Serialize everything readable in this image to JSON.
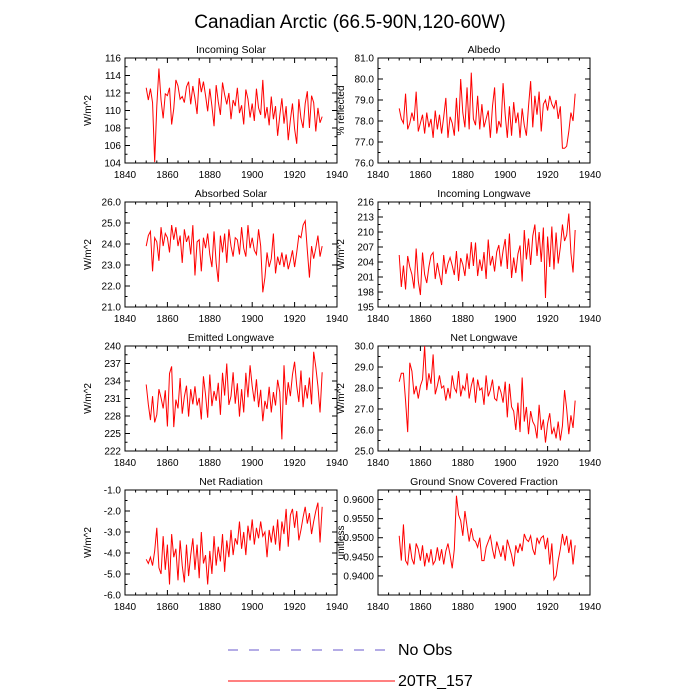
{
  "figure": {
    "title": "Canadian Arctic (66.5-90N,120-60W)"
  },
  "colors": {
    "series": "#ff0000",
    "obs": "#6a5acd",
    "axis": "#000000"
  },
  "legend": [
    {
      "label": "No Obs",
      "style": "dashed",
      "color": "#6a5acd"
    },
    {
      "label": "20TR_157",
      "style": "solid",
      "color": "#ff0000"
    }
  ],
  "chart_data": [
    {
      "type": "line",
      "title": "Incoming Solar",
      "ylabel": "W/m^2",
      "xlabel": "",
      "xlim": [
        1840,
        1940
      ],
      "ylim": [
        104,
        116
      ],
      "xticks": [
        "1840",
        "1860",
        "1880",
        "1900",
        "1920",
        "1940"
      ],
      "yticks": [
        "104",
        "106",
        "108",
        "110",
        "112",
        "114",
        "116"
      ],
      "series": [
        {
          "name": "20TR_157",
          "x_start": 1850,
          "values": [
            112.6,
            111.2,
            112.5,
            110.9,
            104.1,
            110.5,
            114.8,
            111.2,
            109.1,
            111.9,
            111.7,
            112.6,
            108.4,
            110.2,
            113.5,
            112.8,
            111.3,
            111.6,
            110.9,
            112.7,
            113.3,
            110.7,
            112.8,
            111.4,
            109.6,
            113.7,
            112.1,
            113.3,
            111.7,
            109.9,
            112.5,
            110.5,
            108.2,
            112.9,
            111.0,
            109.5,
            113.2,
            111.8,
            110.7,
            112.0,
            109.0,
            111.2,
            110.5,
            112.6,
            109.7,
            110.6,
            108.4,
            112.4,
            111.3,
            109.2,
            110.8,
            108.8,
            112.5,
            110.3,
            109.5,
            113.5,
            109.1,
            110.4,
            108.3,
            111.6,
            109.0,
            110.5,
            107.1,
            109.4,
            111.4,
            108.5,
            110.5,
            106.6,
            108.9,
            110.8,
            107.9,
            106.2,
            111.3,
            109.1,
            108.0,
            110.8,
            112.2,
            108.0,
            111.7,
            110.9,
            107.6,
            110.3,
            108.6,
            109.3
          ]
        }
      ]
    },
    {
      "type": "line",
      "title": "Albedo",
      "ylabel": "% reflected",
      "xlabel": "",
      "xlim": [
        1840,
        1940
      ],
      "ylim": [
        76.0,
        81.0
      ],
      "xticks": [
        "1840",
        "1860",
        "1880",
        "1900",
        "1920",
        "1940"
      ],
      "yticks": [
        "76.0",
        "77.0",
        "78.0",
        "79.0",
        "80.0",
        "81.0"
      ],
      "series": [
        {
          "name": "20TR_157",
          "x_start": 1850,
          "values": [
            78.6,
            78.1,
            77.9,
            79.3,
            77.6,
            77.9,
            78.4,
            78.0,
            79.4,
            77.5,
            77.9,
            78.3,
            77.4,
            78.4,
            77.7,
            78.1,
            77.2,
            78.5,
            77.6,
            78.3,
            77.4,
            78.2,
            79.1,
            77.2,
            78.2,
            77.9,
            77.3,
            79.1,
            77.5,
            80.0,
            78.4,
            77.7,
            79.6,
            77.6,
            80.3,
            78.1,
            77.8,
            79.2,
            77.6,
            78.8,
            77.7,
            78.1,
            78.5,
            77.2,
            78.7,
            79.6,
            77.4,
            78.0,
            77.7,
            79.8,
            78.3,
            77.2,
            78.7,
            77.3,
            78.9,
            77.9,
            78.4,
            77.2,
            78.6,
            77.8,
            77.3,
            78.7,
            79.9,
            77.7,
            79.2,
            78.3,
            79.4,
            77.5,
            78.8,
            79.0,
            78.5,
            79.2,
            78.8,
            78.6,
            79.0,
            78.1,
            78.7,
            76.7,
            76.7,
            76.8,
            77.5,
            78.4,
            78.0,
            79.3
          ]
        }
      ]
    },
    {
      "type": "line",
      "title": "Absorbed Solar",
      "ylabel": "W/m^2",
      "xlabel": "",
      "xlim": [
        1840,
        1940
      ],
      "ylim": [
        21.0,
        26.0
      ],
      "xticks": [
        "1840",
        "1860",
        "1880",
        "1900",
        "1920",
        "1940"
      ],
      "yticks": [
        "21.0",
        "22.0",
        "23.0",
        "24.0",
        "25.0",
        "26.0"
      ],
      "series": [
        {
          "name": "20TR_157",
          "x_start": 1850,
          "values": [
            23.9,
            24.4,
            24.6,
            22.7,
            24.3,
            24.1,
            23.2,
            24.8,
            23.9,
            24.5,
            24.3,
            23.6,
            24.9,
            24.2,
            24.8,
            23.9,
            24.4,
            23.1,
            24.7,
            24.1,
            24.4,
            23.5,
            24.9,
            22.5,
            24.1,
            24.2,
            22.7,
            24.3,
            23.8,
            24.5,
            23.5,
            22.9,
            24.6,
            23.1,
            22.2,
            24.4,
            23.6,
            24.5,
            23.1,
            24.7,
            23.9,
            23.4,
            24.3,
            24.2,
            23.5,
            24.8,
            23.8,
            23.4,
            24.9,
            23.8,
            24.3,
            23.7,
            23.5,
            24.7,
            23.9,
            21.7,
            22.4,
            23.6,
            22.9,
            23.3,
            24.5,
            22.6,
            23.4,
            23.0,
            23.6,
            22.9,
            23.5,
            22.8,
            23.2,
            23.7,
            22.9,
            23.6,
            24.4,
            24.3,
            24.9,
            25.1,
            23.7,
            22.4,
            23.9,
            23.3,
            23.8,
            24.4,
            23.4,
            23.9
          ]
        }
      ]
    },
    {
      "type": "line",
      "title": "Incoming Longwave",
      "ylabel": "W/m^2",
      "xlabel": "",
      "xlim": [
        1840,
        1940
      ],
      "ylim": [
        195,
        216
      ],
      "xticks": [
        "1840",
        "1860",
        "1880",
        "1900",
        "1920",
        "1940"
      ],
      "yticks": [
        "195",
        "198",
        "201",
        "204",
        "207",
        "210",
        "213",
        "216"
      ],
      "series": [
        {
          "name": "20TR_157",
          "x_start": 1850,
          "values": [
            205.4,
            199.0,
            203.3,
            198.5,
            205.2,
            203.0,
            201.5,
            198.7,
            206.7,
            200.2,
            197.4,
            205.9,
            201.5,
            199.8,
            203.0,
            205.3,
            205.9,
            200.6,
            203.8,
            201.5,
            199.4,
            205.4,
            201.6,
            203.7,
            204.9,
            203.3,
            201.4,
            206.2,
            200.2,
            204.8,
            203.5,
            201.2,
            205.7,
            202.6,
            208.0,
            203.2,
            207.9,
            201.2,
            204.5,
            202.2,
            206.0,
            200.6,
            208.5,
            203.3,
            205.2,
            202.1,
            206.0,
            207.4,
            203.1,
            206.3,
            208.6,
            202.6,
            209.7,
            200.8,
            204.9,
            201.8,
            205.6,
            207.3,
            200.1,
            210.4,
            204.5,
            208.7,
            203.4,
            209.2,
            211.5,
            205.2,
            210.0,
            204.0,
            210.9,
            196.8,
            209.1,
            203.0,
            211.1,
            202.5,
            209.9,
            203.7,
            206.9,
            211.5,
            208.2,
            209.4,
            213.7,
            205.8,
            201.9,
            210.4
          ]
        }
      ]
    },
    {
      "type": "line",
      "title": "Emitted Longwave",
      "ylabel": "W/m^2",
      "xlabel": "",
      "xlim": [
        1840,
        1940
      ],
      "ylim": [
        222,
        240
      ],
      "xticks": [
        "1840",
        "1860",
        "1880",
        "1900",
        "1920",
        "1940"
      ],
      "yticks": [
        "222",
        "225",
        "228",
        "231",
        "234",
        "237",
        "240"
      ],
      "series": [
        {
          "name": "20TR_157",
          "x_start": 1850,
          "values": [
            233.4,
            230.0,
            227.3,
            231.4,
            226.9,
            228.2,
            232.6,
            231.1,
            229.3,
            232.4,
            226.2,
            235.3,
            236.5,
            226.1,
            230.8,
            229.3,
            234.5,
            228.4,
            231.3,
            233.2,
            227.9,
            232.6,
            230.0,
            233.1,
            229.8,
            231.1,
            227.4,
            234.8,
            231.6,
            227.7,
            235.1,
            229.7,
            232.3,
            230.6,
            233.7,
            228.2,
            235.4,
            231.5,
            237.0,
            229.9,
            231.4,
            235.5,
            230.1,
            233.6,
            227.9,
            232.6,
            228.6,
            235.4,
            231.2,
            236.7,
            233.1,
            230.5,
            234.3,
            229.5,
            232.5,
            227.1,
            230.6,
            229.2,
            233.0,
            228.6,
            232.1,
            229.8,
            234.2,
            232.1,
            224.0,
            236.7,
            229.9,
            233.8,
            231.4,
            235.1,
            237.3,
            233.2,
            230.4,
            235.8,
            229.5,
            233.3,
            231.0,
            234.6,
            230.0,
            239.0,
            236.4,
            233.1,
            228.6,
            235.5
          ]
        }
      ]
    },
    {
      "type": "line",
      "title": "Net Longwave",
      "ylabel": "W/m^2",
      "xlabel": "",
      "xlim": [
        1840,
        1940
      ],
      "ylim": [
        25.0,
        30.0
      ],
      "xticks": [
        "1840",
        "1860",
        "1880",
        "1900",
        "1920",
        "1940"
      ],
      "yticks": [
        "25.0",
        "26.0",
        "27.0",
        "28.0",
        "29.0",
        "30.0"
      ],
      "series": [
        {
          "name": "20TR_157",
          "x_start": 1850,
          "values": [
            28.3,
            28.7,
            28.7,
            27.4,
            25.9,
            29.2,
            28.8,
            27.7,
            28.1,
            27.5,
            28.1,
            28.4,
            30.0,
            27.9,
            28.7,
            28.2,
            29.6,
            27.7,
            28.1,
            28.6,
            28.0,
            28.1,
            27.4,
            28.0,
            27.5,
            28.6,
            28.0,
            27.8,
            28.8,
            27.6,
            28.1,
            27.9,
            28.7,
            27.5,
            28.1,
            28.5,
            27.3,
            28.4,
            27.9,
            28.0,
            27.2,
            28.6,
            27.6,
            27.9,
            28.4,
            27.5,
            27.4,
            28.1,
            27.8,
            27.3,
            28.3,
            26.6,
            28.2,
            27.1,
            26.9,
            26.0,
            27.3,
            25.9,
            28.5,
            26.4,
            27.1,
            25.8,
            26.9,
            26.4,
            26.2,
            25.6,
            27.2,
            26.0,
            26.5,
            25.4,
            26.3,
            26.8,
            25.8,
            26.1,
            25.6,
            26.4,
            25.5,
            26.2,
            27.9,
            27.0,
            25.8,
            26.7,
            26.1,
            27.4
          ]
        }
      ]
    },
    {
      "type": "line",
      "title": "Net Radiation",
      "ylabel": "W/m^2",
      "xlabel": "",
      "xlim": [
        1840,
        1940
      ],
      "ylim": [
        -6.0,
        -1.0
      ],
      "xticks": [
        "1840",
        "1860",
        "1880",
        "1900",
        "1920",
        "1940"
      ],
      "yticks": [
        "-1.0",
        "-2.0",
        "-3.0",
        "-4.0",
        "-5.0",
        "-6.0"
      ],
      "series": [
        {
          "name": "20TR_157",
          "x_start": 1850,
          "values": [
            -4.3,
            -4.5,
            -4.2,
            -4.6,
            -3.9,
            -2.8,
            -4.7,
            -5.0,
            -3.2,
            -4.8,
            -3.6,
            -5.5,
            -3.1,
            -4.2,
            -3.8,
            -5.3,
            -3.4,
            -4.6,
            -5.4,
            -3.6,
            -5.1,
            -4.1,
            -3.3,
            -4.8,
            -3.6,
            -5.2,
            -3.0,
            -4.5,
            -4.1,
            -5.5,
            -3.9,
            -5.0,
            -3.2,
            -4.6,
            -3.7,
            -4.4,
            -3.1,
            -4.9,
            -3.4,
            -4.2,
            -2.9,
            -4.1,
            -3.3,
            -3.6,
            -2.5,
            -3.8,
            -3.0,
            -4.1,
            -2.7,
            -3.4,
            -2.4,
            -3.6,
            -2.8,
            -3.3,
            -2.5,
            -3.2,
            -3.0,
            -4.2,
            -2.9,
            -3.5,
            -2.7,
            -3.6,
            -2.4,
            -3.9,
            -2.5,
            -3.1,
            -1.9,
            -3.7,
            -2.2,
            -1.9,
            -2.8,
            -2.0,
            -3.4,
            -2.9,
            -2.3,
            -1.8,
            -2.6,
            -2.1,
            -3.1,
            -2.5,
            -2.0,
            -1.6,
            -3.5,
            -1.8
          ]
        }
      ]
    },
    {
      "type": "line",
      "title": "Ground Snow Covered Fraction",
      "ylabel": "unitless",
      "xlabel": "",
      "xlim": [
        1840,
        1940
      ],
      "ylim": [
        0.935,
        0.9625
      ],
      "xticks": [
        "1840",
        "1860",
        "1880",
        "1900",
        "1920",
        "1940"
      ],
      "yticks": [
        "0.9400",
        "0.9450",
        "0.9500",
        "0.9550",
        "0.9600"
      ],
      "series": [
        {
          "name": "20TR_157",
          "x_start": 1850,
          "values": [
            0.9505,
            0.944,
            0.9535,
            0.944,
            0.943,
            0.9485,
            0.9445,
            0.943,
            0.9485,
            0.947,
            0.944,
            0.948,
            0.9425,
            0.946,
            0.9435,
            0.947,
            0.943,
            0.944,
            0.9475,
            0.944,
            0.947,
            0.943,
            0.9465,
            0.9485,
            0.9455,
            0.942,
            0.947,
            0.961,
            0.956,
            0.9545,
            0.9505,
            0.957,
            0.953,
            0.949,
            0.9525,
            0.9495,
            0.949,
            0.9475,
            0.95,
            0.944,
            0.944,
            0.9475,
            0.949,
            0.9505,
            0.947,
            0.9445,
            0.949,
            0.947,
            0.945,
            0.948,
            0.944,
            0.9495,
            0.9475,
            0.9455,
            0.9425,
            0.948,
            0.946,
            0.9485,
            0.9465,
            0.951,
            0.9495,
            0.949,
            0.9505,
            0.947,
            0.9455,
            0.95,
            0.9485,
            0.95,
            0.9505,
            0.947,
            0.95,
            0.943,
            0.9485,
            0.939,
            0.94,
            0.944,
            0.947,
            0.951,
            0.948,
            0.9505,
            0.946,
            0.9495,
            0.943,
            0.948
          ]
        }
      ]
    }
  ]
}
